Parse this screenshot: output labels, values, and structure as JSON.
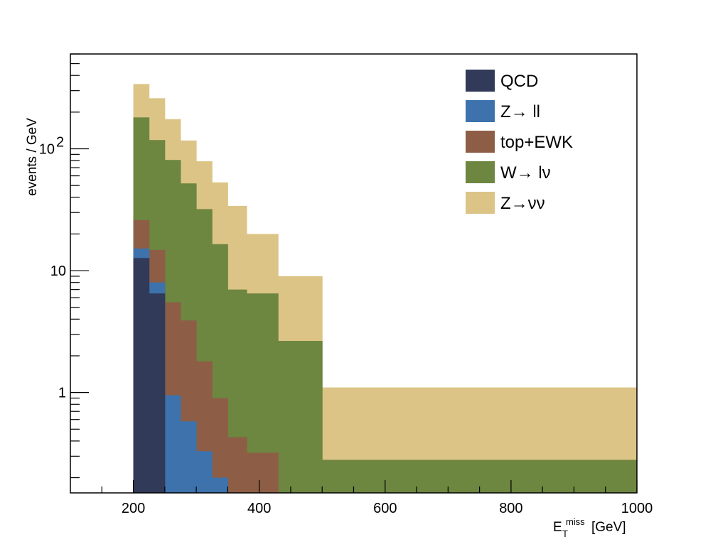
{
  "chart_data": {
    "type": "bar",
    "stacked": true,
    "log_y": true,
    "xlabel": "E_T^miss [GeV]",
    "xlabel_parts": {
      "main": "E",
      "sub": "T",
      "sup": "miss",
      "unit": "[GeV]"
    },
    "ylabel": "events / GeV",
    "xlim": [
      100,
      1000
    ],
    "ylim": [
      0.15,
      600
    ],
    "x_ticks": [
      200,
      400,
      600,
      800,
      1000
    ],
    "y_ticks": [
      {
        "value": 1,
        "label": "1"
      },
      {
        "value": 10,
        "label": "10"
      },
      {
        "value": 100,
        "label": "10",
        "sup": "2"
      }
    ],
    "bin_edges": [
      200,
      225,
      250,
      275,
      300,
      325,
      350,
      380,
      430,
      500,
      1000
    ],
    "legend_position": "top-right",
    "legend": [
      {
        "name": "QCD",
        "color": "#313a58"
      },
      {
        "name": "Z→ ll",
        "color": "#3d72ad"
      },
      {
        "name": "top+EWK",
        "color": "#8d5e45"
      },
      {
        "name": "W→  lν",
        "color": "#6d8640"
      },
      {
        "name": "Z→νν",
        "color": "#dcc486"
      }
    ],
    "series": [
      {
        "name": "QCD",
        "color": "#313a58",
        "cumulative_top": [
          12.7,
          6.5,
          0.15,
          0.15,
          0.15,
          0.15,
          0.15,
          0.15,
          0.15,
          0.15
        ]
      },
      {
        "name": "Z→ ll",
        "color": "#3d72ad",
        "cumulative_top": [
          15.2,
          8.0,
          0.95,
          0.58,
          0.33,
          0.2,
          0.15,
          0.15,
          0.15,
          0.15
        ]
      },
      {
        "name": "top+EWK",
        "color": "#8d5e45",
        "cumulative_top": [
          26,
          14.8,
          5.5,
          3.9,
          1.8,
          0.9,
          0.43,
          0.32,
          0.15,
          0.15
        ]
      },
      {
        "name": "W→  lν",
        "color": "#6d8640",
        "cumulative_top": [
          181,
          118,
          81,
          52,
          32,
          16.5,
          7.0,
          6.5,
          2.65,
          0.28
        ]
      },
      {
        "name": "Z→νν",
        "color": "#dcc486",
        "cumulative_top": [
          340,
          260,
          175,
          117,
          79,
          53,
          34,
          20,
          9.0,
          1.1
        ]
      }
    ]
  }
}
